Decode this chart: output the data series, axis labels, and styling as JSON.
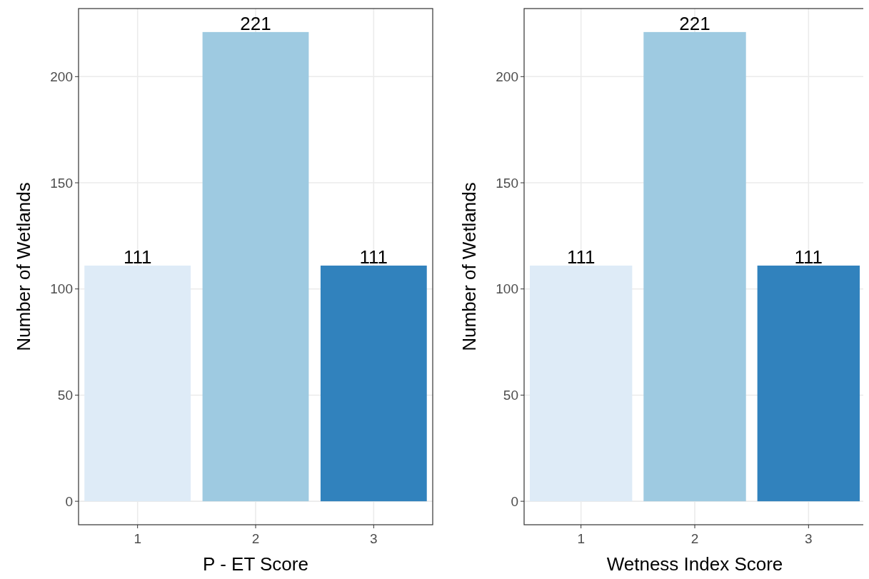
{
  "chart_data": [
    {
      "type": "bar",
      "xlabel": "P - ET Score",
      "ylabel": "Number of Wetlands",
      "categories": [
        "1",
        "2",
        "3"
      ],
      "values": [
        111,
        221,
        111
      ],
      "colors": [
        "#deebf7",
        "#9ecae1",
        "#3182bd"
      ],
      "ylim": [
        -11.05,
        232.05
      ],
      "yticks": [
        0,
        50,
        100,
        150,
        200
      ],
      "grid": true,
      "data_labels": true
    },
    {
      "type": "bar",
      "xlabel": "Wetness Index Score",
      "ylabel": "Number of Wetlands",
      "categories": [
        "1",
        "2",
        "3"
      ],
      "values": [
        111,
        221,
        111
      ],
      "colors": [
        "#deebf7",
        "#9ecae1",
        "#3182bd"
      ],
      "ylim": [
        -11.05,
        232.05
      ],
      "yticks": [
        0,
        50,
        100,
        150,
        200
      ],
      "grid": true,
      "data_labels": true
    }
  ]
}
